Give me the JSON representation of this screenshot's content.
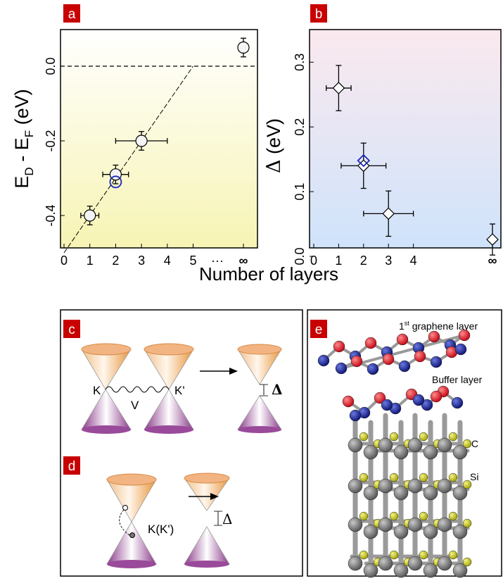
{
  "panels": {
    "a": "a",
    "b": "b",
    "c": "c",
    "d": "d",
    "e": "e"
  },
  "shared_xlabel": "Number of layers",
  "colors": {
    "panel_tag": "#c80000",
    "accent_blue": "#1a28c0",
    "atom_red": "#e00010",
    "atom_blue": "#101890",
    "atom_gray": "#707070",
    "atom_yellow": "#c8c800"
  },
  "chart_data": [
    {
      "type": "scatter",
      "panel": "a",
      "ylabel": {
        "main": "E",
        "sub1": "D",
        "mid": " - E",
        "sub2": "F",
        "unit": " (eV)"
      },
      "xticks": [
        "0",
        "1",
        "2",
        "3",
        "4",
        "5",
        "···",
        "∞"
      ],
      "yticks": [
        "0.0",
        "-0.2",
        "-0.4"
      ],
      "ylim": [
        -0.5,
        0.09
      ],
      "points": [
        {
          "x": 1,
          "y": -0.4,
          "xerr": 0.35,
          "yerr": 0.025
        },
        {
          "x": 2,
          "y": -0.29,
          "xerr": 0.5,
          "yerr": 0.025
        },
        {
          "x": 3,
          "y": -0.2,
          "xerr": 1.0,
          "yerr": 0.025
        },
        {
          "x": "∞",
          "y": 0.05,
          "xerr": 0,
          "yerr": 0.025
        }
      ],
      "blue_point": {
        "x": 2,
        "y": -0.31
      },
      "reference_lines": [
        "y = 0 (dashed)",
        "linear fit (dashed) from (0, -0.5) to (5, 0)"
      ]
    },
    {
      "type": "scatter",
      "panel": "b",
      "ylabel": {
        "symbol": "Δ",
        "unit": " (eV)"
      },
      "xticks": [
        "0",
        "1",
        "2",
        "3",
        "4",
        "∞"
      ],
      "yticks": [
        "0.0",
        "0.1",
        "0.2",
        "0.3"
      ],
      "ylim": [
        -0.02,
        0.35
      ],
      "points": [
        {
          "x": 1,
          "y": 0.26,
          "xerr": 0.5,
          "yerr": 0.035
        },
        {
          "x": 2,
          "y": 0.14,
          "xerr": 0.9,
          "yerr": 0.035
        },
        {
          "x": 3,
          "y": 0.066,
          "xerr": 1.0,
          "yerr": 0.035
        },
        {
          "x": "∞",
          "y": 0.026,
          "xerr": 0,
          "yerr": 0.024
        }
      ],
      "blue_point": {
        "x": 2,
        "y": 0.148
      }
    }
  ],
  "panel_c": {
    "label_k": "K",
    "label_kp": "K'",
    "label_v": "V",
    "label_delta": "Δ"
  },
  "panel_d": {
    "label_k": "K(K')",
    "label_delta": "Δ"
  },
  "panel_e": {
    "layer1_main": "1",
    "layer1_sup": "st",
    "layer1_rest": " graphene layer",
    "buffer": "Buffer layer",
    "c": "C",
    "si": "Si"
  }
}
